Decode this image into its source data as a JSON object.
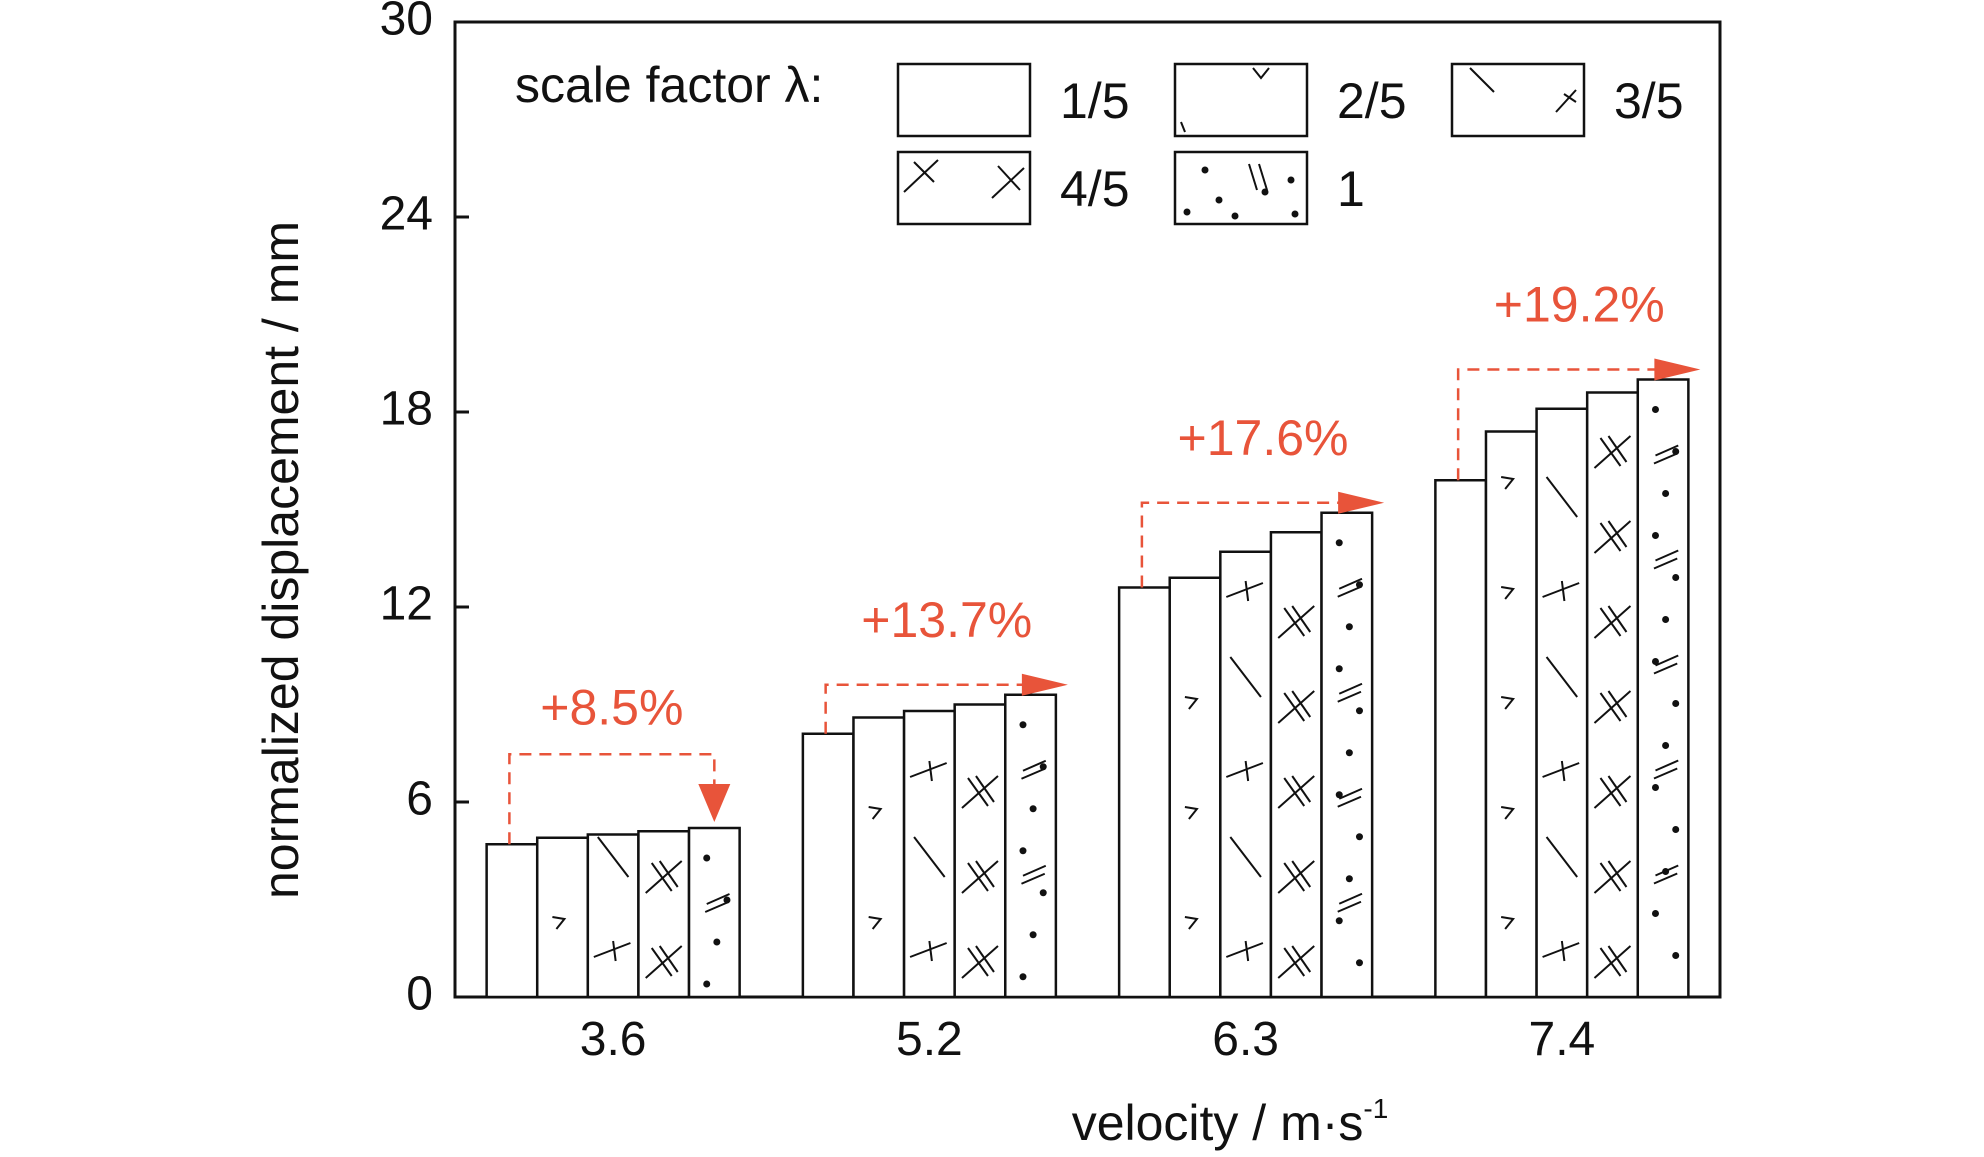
{
  "chart_data": {
    "type": "bar",
    "title": "",
    "xlabel": "velocity / m·s",
    "xlabel_sup": "-1",
    "ylabel": "normalized displacement / mm",
    "ylim": [
      0,
      30
    ],
    "yticks": [
      "0",
      "6",
      "12",
      "18",
      "24",
      "30"
    ],
    "categories": [
      "3.6",
      "5.2",
      "6.3",
      "7.4"
    ],
    "legend_title": "scale factor λ:",
    "legend_position": "top",
    "series": [
      {
        "name": "1/5",
        "pattern": "none",
        "values": [
          4.7,
          8.1,
          12.6,
          15.9
        ]
      },
      {
        "name": "2/5",
        "pattern": "ticks",
        "values": [
          4.9,
          8.6,
          12.9,
          17.4
        ]
      },
      {
        "name": "3/5",
        "pattern": "slash-tick",
        "values": [
          5.0,
          8.8,
          13.7,
          18.1
        ]
      },
      {
        "name": "4/5",
        "pattern": "cross",
        "values": [
          5.1,
          9.0,
          14.3,
          18.6
        ]
      },
      {
        "name": "1",
        "pattern": "dots-lines",
        "values": [
          5.2,
          9.3,
          14.9,
          19.0
        ]
      }
    ],
    "annotations": [
      "+8.5%",
      "+13.7%",
      "+17.6%",
      "+19.2%"
    ],
    "annotation_color": "#e8543a"
  }
}
